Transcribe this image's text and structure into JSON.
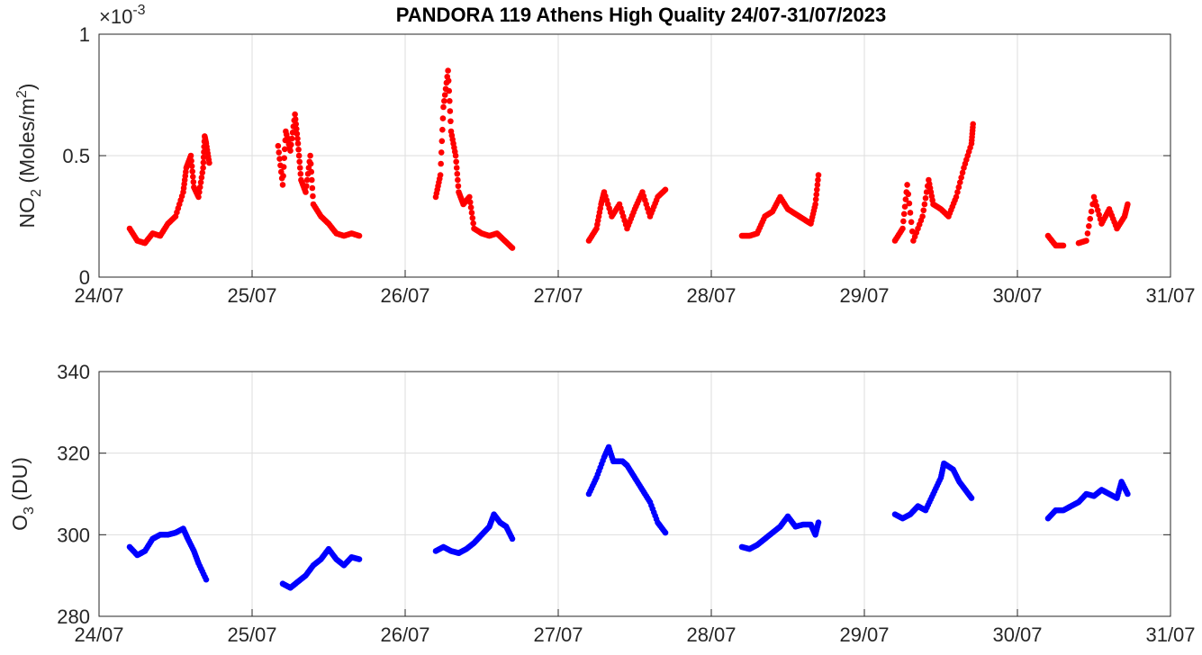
{
  "chart_data": [
    {
      "type": "scatter",
      "title": "PANDORA 119 Athens High Quality 24/07-31/07/2023",
      "ylabel": "NO2 (Moles/m2)",
      "ylabel_parts": {
        "main": "NO",
        "sub": "2",
        "rest": " (Moles/m",
        "sup": "2",
        "end": ")"
      },
      "exponent_label": "×10",
      "exponent_power": "-3",
      "ylim": [
        0,
        1
      ],
      "yticks": [
        0,
        0.5,
        1
      ],
      "ytick_labels": [
        "0",
        "0.5",
        "1"
      ],
      "xlim": [
        0,
        7
      ],
      "xtick_labels": [
        "24/07",
        "25/07",
        "26/07",
        "27/07",
        "28/07",
        "29/07",
        "30/07",
        "31/07"
      ],
      "grid": true,
      "color": "#ff0000",
      "x_units": "days since 24/07",
      "points": [
        [
          0.2,
          0.2
        ],
        [
          0.25,
          0.15
        ],
        [
          0.3,
          0.14
        ],
        [
          0.35,
          0.18
        ],
        [
          0.4,
          0.17
        ],
        [
          0.45,
          0.22
        ],
        [
          0.5,
          0.25
        ],
        [
          0.55,
          0.35
        ],
        [
          0.57,
          0.45
        ],
        [
          0.6,
          0.5
        ],
        [
          0.62,
          0.37
        ],
        [
          0.65,
          0.33
        ],
        [
          0.68,
          0.45
        ],
        [
          0.69,
          0.58
        ],
        [
          0.7,
          0.55
        ],
        [
          0.72,
          0.47
        ],
        [
          1.17,
          0.54
        ],
        [
          1.2,
          0.38
        ],
        [
          1.22,
          0.6
        ],
        [
          1.25,
          0.52
        ],
        [
          1.28,
          0.67
        ],
        [
          1.3,
          0.55
        ],
        [
          1.32,
          0.4
        ],
        [
          1.35,
          0.35
        ],
        [
          1.38,
          0.5
        ],
        [
          1.4,
          0.3
        ],
        [
          1.45,
          0.25
        ],
        [
          1.5,
          0.22
        ],
        [
          1.55,
          0.18
        ],
        [
          1.6,
          0.17
        ],
        [
          1.65,
          0.18
        ],
        [
          1.7,
          0.17
        ],
        [
          2.2,
          0.33
        ],
        [
          2.23,
          0.42
        ],
        [
          2.25,
          0.7
        ],
        [
          2.28,
          0.85
        ],
        [
          2.3,
          0.6
        ],
        [
          2.33,
          0.5
        ],
        [
          2.35,
          0.35
        ],
        [
          2.38,
          0.3
        ],
        [
          2.42,
          0.33
        ],
        [
          2.45,
          0.2
        ],
        [
          2.5,
          0.18
        ],
        [
          2.55,
          0.17
        ],
        [
          2.6,
          0.18
        ],
        [
          2.65,
          0.15
        ],
        [
          2.7,
          0.12
        ],
        [
          3.2,
          0.15
        ],
        [
          3.25,
          0.2
        ],
        [
          3.28,
          0.3
        ],
        [
          3.3,
          0.35
        ],
        [
          3.35,
          0.25
        ],
        [
          3.4,
          0.3
        ],
        [
          3.45,
          0.2
        ],
        [
          3.5,
          0.28
        ],
        [
          3.55,
          0.35
        ],
        [
          3.6,
          0.25
        ],
        [
          3.65,
          0.33
        ],
        [
          3.7,
          0.36
        ],
        [
          4.2,
          0.17
        ],
        [
          4.25,
          0.17
        ],
        [
          4.3,
          0.18
        ],
        [
          4.35,
          0.25
        ],
        [
          4.4,
          0.27
        ],
        [
          4.45,
          0.33
        ],
        [
          4.5,
          0.28
        ],
        [
          4.55,
          0.26
        ],
        [
          4.6,
          0.24
        ],
        [
          4.65,
          0.22
        ],
        [
          4.68,
          0.3
        ],
        [
          4.7,
          0.42
        ],
        [
          5.2,
          0.15
        ],
        [
          5.25,
          0.2
        ],
        [
          5.28,
          0.38
        ],
        [
          5.32,
          0.15
        ],
        [
          5.38,
          0.25
        ],
        [
          5.42,
          0.4
        ],
        [
          5.45,
          0.3
        ],
        [
          5.5,
          0.28
        ],
        [
          5.55,
          0.25
        ],
        [
          5.6,
          0.33
        ],
        [
          5.65,
          0.45
        ],
        [
          5.7,
          0.55
        ],
        [
          5.71,
          0.63
        ],
        [
          6.2,
          0.17
        ],
        [
          6.25,
          0.13
        ],
        [
          6.3,
          0.13
        ],
        [
          6.4,
          0.14
        ],
        [
          6.45,
          0.15
        ],
        [
          6.5,
          0.33
        ],
        [
          6.55,
          0.22
        ],
        [
          6.6,
          0.28
        ],
        [
          6.65,
          0.2
        ],
        [
          6.7,
          0.25
        ],
        [
          6.72,
          0.3
        ]
      ]
    },
    {
      "type": "scatter",
      "ylabel": "O3 (DU)",
      "ylabel_parts": {
        "main": "O",
        "sub": "3",
        "rest": " (DU)"
      },
      "ylim": [
        280,
        340
      ],
      "yticks": [
        280,
        300,
        320,
        340
      ],
      "ytick_labels": [
        "280",
        "300",
        "320",
        "340"
      ],
      "xlim": [
        0,
        7
      ],
      "xtick_labels": [
        "24/07",
        "25/07",
        "26/07",
        "27/07",
        "28/07",
        "29/07",
        "30/07",
        "31/07"
      ],
      "grid": true,
      "color": "#0000ff",
      "x_units": "days since 24/07",
      "points": [
        [
          0.2,
          297
        ],
        [
          0.25,
          295
        ],
        [
          0.3,
          296
        ],
        [
          0.35,
          299
        ],
        [
          0.4,
          300
        ],
        [
          0.45,
          300
        ],
        [
          0.5,
          300.5
        ],
        [
          0.55,
          301.5
        ],
        [
          0.58,
          299
        ],
        [
          0.62,
          296
        ],
        [
          0.65,
          293
        ],
        [
          0.7,
          289
        ],
        [
          1.2,
          288
        ],
        [
          1.25,
          287
        ],
        [
          1.3,
          288.5
        ],
        [
          1.35,
          290
        ],
        [
          1.4,
          292.5
        ],
        [
          1.45,
          294
        ],
        [
          1.5,
          296.5
        ],
        [
          1.55,
          294
        ],
        [
          1.6,
          292.5
        ],
        [
          1.65,
          294.5
        ],
        [
          1.7,
          294
        ],
        [
          2.2,
          296
        ],
        [
          2.25,
          297
        ],
        [
          2.3,
          296
        ],
        [
          2.35,
          295.5
        ],
        [
          2.4,
          296.5
        ],
        [
          2.45,
          298
        ],
        [
          2.5,
          300
        ],
        [
          2.55,
          302
        ],
        [
          2.58,
          305
        ],
        [
          2.62,
          303
        ],
        [
          2.66,
          302
        ],
        [
          2.7,
          299
        ],
        [
          3.2,
          310
        ],
        [
          3.25,
          314
        ],
        [
          3.3,
          319
        ],
        [
          3.33,
          321.5
        ],
        [
          3.36,
          318
        ],
        [
          3.42,
          318
        ],
        [
          3.45,
          317
        ],
        [
          3.5,
          314
        ],
        [
          3.55,
          311
        ],
        [
          3.6,
          308
        ],
        [
          3.65,
          303
        ],
        [
          3.7,
          300.5
        ],
        [
          4.2,
          297
        ],
        [
          4.25,
          296.5
        ],
        [
          4.3,
          297.5
        ],
        [
          4.35,
          299
        ],
        [
          4.4,
          300.5
        ],
        [
          4.45,
          302
        ],
        [
          4.5,
          304.5
        ],
        [
          4.55,
          302
        ],
        [
          4.6,
          302.5
        ],
        [
          4.65,
          302.5
        ],
        [
          4.68,
          300
        ],
        [
          4.7,
          303
        ],
        [
          5.2,
          305
        ],
        [
          5.25,
          304
        ],
        [
          5.3,
          305
        ],
        [
          5.35,
          307
        ],
        [
          5.4,
          306
        ],
        [
          5.45,
          310
        ],
        [
          5.5,
          314
        ],
        [
          5.52,
          317.5
        ],
        [
          5.58,
          316
        ],
        [
          5.62,
          313
        ],
        [
          5.66,
          311
        ],
        [
          5.7,
          309
        ],
        [
          6.2,
          304
        ],
        [
          6.25,
          306
        ],
        [
          6.3,
          306
        ],
        [
          6.35,
          307
        ],
        [
          6.4,
          308
        ],
        [
          6.45,
          310
        ],
        [
          6.5,
          309.5
        ],
        [
          6.55,
          311
        ],
        [
          6.6,
          310
        ],
        [
          6.65,
          309
        ],
        [
          6.68,
          313
        ],
        [
          6.72,
          310
        ]
      ]
    }
  ]
}
